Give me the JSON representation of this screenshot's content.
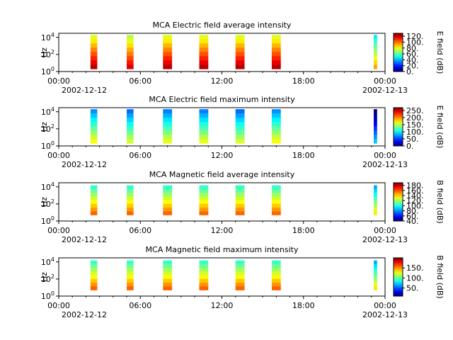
{
  "chart_data": [
    {
      "type": "heatmap",
      "title": "MCA  Electric field average intensity",
      "ylabel": "Hz",
      "ylim": [
        1,
        30000
      ],
      "yscale": "log",
      "yticks": [
        {
          "base": "10",
          "exp": "0"
        },
        {
          "base": "10",
          "exp": "2"
        },
        {
          "base": "10",
          "exp": "4"
        }
      ],
      "xticks": [
        "00:00",
        "06:00",
        "12:00",
        "18:00",
        "00:00"
      ],
      "xdates": [
        "2002-12-12",
        "2002-12-13"
      ],
      "colorbar": {
        "label": "E field (dB)",
        "range": [
          0,
          130
        ],
        "ticks": [
          "0.",
          "20.",
          "40.",
          "60.",
          "80.",
          "100.",
          "120."
        ]
      },
      "bands": [
        {
          "start": "02:20",
          "end": "02:50",
          "flow": "2",
          "fhigh": "20000",
          "mean_db": 100
        },
        {
          "start": "05:00",
          "end": "05:30",
          "flow": "2",
          "fhigh": "20000",
          "mean_db": 95
        },
        {
          "start": "07:40",
          "end": "08:20",
          "flow": "2",
          "fhigh": "20000",
          "mean_db": 100
        },
        {
          "start": "10:20",
          "end": "11:00",
          "flow": "2",
          "fhigh": "20000",
          "mean_db": 100
        },
        {
          "start": "13:00",
          "end": "13:40",
          "flow": "2",
          "fhigh": "20000",
          "mean_db": 100
        },
        {
          "start": "15:40",
          "end": "16:20",
          "flow": "2",
          "fhigh": "20000",
          "mean_db": 100
        },
        {
          "start": "23:10",
          "end": "23:25",
          "flow": "2",
          "fhigh": "20000",
          "mean_db": 70
        }
      ]
    },
    {
      "type": "heatmap",
      "title": "MCA  Electric field maximum intensity",
      "ylabel": "Hz",
      "ylim": [
        1,
        30000
      ],
      "yscale": "log",
      "yticks": [
        {
          "base": "10",
          "exp": "0"
        },
        {
          "base": "10",
          "exp": "2"
        },
        {
          "base": "10",
          "exp": "4"
        }
      ],
      "xticks": [
        "00:00",
        "06:00",
        "12:00",
        "18:00",
        "00:00"
      ],
      "xdates": [
        "2002-12-12",
        "2002-12-13"
      ],
      "colorbar": {
        "label": "E field (dB)",
        "range": [
          0,
          270
        ],
        "ticks": [
          "0.",
          "50.",
          "100.",
          "150.",
          "200.",
          "250."
        ]
      },
      "bands": [
        {
          "start": "02:20",
          "end": "02:50",
          "flow": "2",
          "fhigh": "20000",
          "mean_db": 120
        },
        {
          "start": "05:00",
          "end": "05:30",
          "flow": "2",
          "fhigh": "20000",
          "mean_db": 110
        },
        {
          "start": "07:40",
          "end": "08:20",
          "flow": "2",
          "fhigh": "20000",
          "mean_db": 115
        },
        {
          "start": "10:20",
          "end": "11:00",
          "flow": "2",
          "fhigh": "20000",
          "mean_db": 115
        },
        {
          "start": "13:00",
          "end": "13:40",
          "flow": "2",
          "fhigh": "20000",
          "mean_db": 110
        },
        {
          "start": "15:40",
          "end": "16:20",
          "flow": "2",
          "fhigh": "20000",
          "mean_db": 120
        },
        {
          "start": "23:10",
          "end": "23:25",
          "flow": "2",
          "fhigh": "20000",
          "mean_db": 40
        }
      ]
    },
    {
      "type": "heatmap",
      "title": "MCA  Magnetic field average intensity",
      "ylabel": "Hz",
      "ylim": [
        1,
        30000
      ],
      "yscale": "log",
      "yticks": [
        {
          "base": "10",
          "exp": "0"
        },
        {
          "base": "10",
          "exp": "2"
        },
        {
          "base": "10",
          "exp": "4"
        }
      ],
      "xticks": [
        "00:00",
        "06:00",
        "12:00",
        "18:00",
        "00:00"
      ],
      "xdates": [
        "2002-12-12",
        "2002-12-13"
      ],
      "colorbar": {
        "label": "B field (dB)",
        "range": [
          40,
          190
        ],
        "ticks": [
          "40.",
          "60.",
          "80.",
          "100.",
          "120.",
          "140.",
          "160.",
          "180."
        ]
      },
      "bands": [
        {
          "start": "02:20",
          "end": "02:50",
          "flow": "5",
          "fhigh": "15000",
          "mean_db": 130
        },
        {
          "start": "05:00",
          "end": "05:30",
          "flow": "5",
          "fhigh": "15000",
          "mean_db": 130
        },
        {
          "start": "07:40",
          "end": "08:20",
          "flow": "5",
          "fhigh": "15000",
          "mean_db": 130
        },
        {
          "start": "10:20",
          "end": "11:00",
          "flow": "5",
          "fhigh": "15000",
          "mean_db": 130
        },
        {
          "start": "13:00",
          "end": "13:40",
          "flow": "5",
          "fhigh": "15000",
          "mean_db": 130
        },
        {
          "start": "15:40",
          "end": "16:20",
          "flow": "5",
          "fhigh": "15000",
          "mean_db": 130
        },
        {
          "start": "23:10",
          "end": "23:25",
          "flow": "5",
          "fhigh": "15000",
          "mean_db": 110
        }
      ]
    },
    {
      "type": "heatmap",
      "title": "MCA  Magnetic field maximum intensity",
      "ylabel": "Hz",
      "ylim": [
        1,
        30000
      ],
      "yscale": "log",
      "yticks": [
        {
          "base": "10",
          "exp": "0"
        },
        {
          "base": "10",
          "exp": "2"
        },
        {
          "base": "10",
          "exp": "4"
        }
      ],
      "xticks": [
        "00:00",
        "06:00",
        "12:00",
        "18:00",
        "00:00"
      ],
      "xdates": [
        "2002-12-12",
        "2002-12-13"
      ],
      "colorbar": {
        "label": "B field (dB)",
        "range": [
          10,
          200
        ],
        "ticks": [
          "50.",
          "100.",
          "150."
        ]
      },
      "bands": [
        {
          "start": "02:20",
          "end": "02:50",
          "flow": "5",
          "fhigh": "15000",
          "mean_db": 125
        },
        {
          "start": "05:00",
          "end": "05:30",
          "flow": "5",
          "fhigh": "15000",
          "mean_db": 125
        },
        {
          "start": "07:40",
          "end": "08:20",
          "flow": "5",
          "fhigh": "15000",
          "mean_db": 125
        },
        {
          "start": "10:20",
          "end": "11:00",
          "flow": "5",
          "fhigh": "15000",
          "mean_db": 125
        },
        {
          "start": "13:00",
          "end": "13:40",
          "flow": "5",
          "fhigh": "15000",
          "mean_db": 125
        },
        {
          "start": "15:40",
          "end": "16:20",
          "flow": "5",
          "fhigh": "15000",
          "mean_db": 125
        },
        {
          "start": "23:10",
          "end": "23:25",
          "flow": "5",
          "fhigh": "15000",
          "mean_db": 100
        }
      ]
    }
  ]
}
